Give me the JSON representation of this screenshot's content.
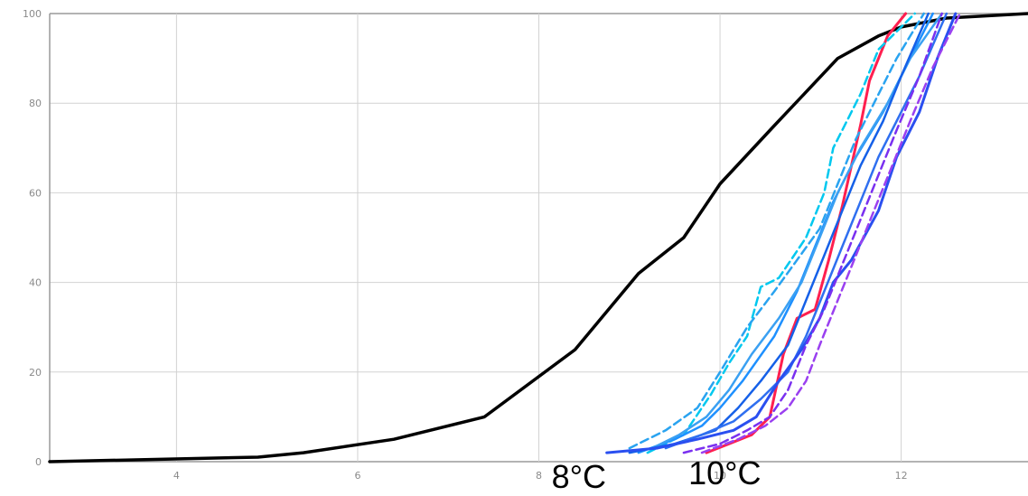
{
  "chart_data": {
    "type": "line",
    "xlim": [
      2.6,
      13.4
    ],
    "ylim": [
      0,
      100
    ],
    "x_ticks": [
      4,
      6,
      8,
      10,
      12
    ],
    "y_ticks": [
      0,
      20,
      40,
      60,
      80,
      100
    ],
    "grid": true,
    "annotations": [
      {
        "text": "8°C",
        "x": 8.5
      },
      {
        "text": "10°C",
        "x": 10.1
      }
    ],
    "series": [
      {
        "color": "#000000",
        "style": "solid",
        "width": 3.5,
        "points": [
          [
            2.6,
            0
          ],
          [
            4.9,
            1
          ],
          [
            5.4,
            2
          ],
          [
            6.4,
            5
          ],
          [
            7.4,
            10
          ],
          [
            8.4,
            25
          ],
          [
            9.1,
            42
          ],
          [
            9.6,
            50
          ],
          [
            10.0,
            62
          ],
          [
            10.6,
            75
          ],
          [
            11.3,
            90
          ],
          [
            11.75,
            95
          ],
          [
            12.0,
            97
          ],
          [
            12.5,
            99
          ],
          [
            13.4,
            100
          ]
        ]
      },
      {
        "color": "#ff1f4f",
        "style": "solid",
        "width": 3,
        "points": [
          [
            9.85,
            2
          ],
          [
            10.1,
            4
          ],
          [
            10.35,
            6
          ],
          [
            10.55,
            10
          ],
          [
            10.7,
            24
          ],
          [
            10.85,
            32
          ],
          [
            11.05,
            34
          ],
          [
            11.2,
            45
          ],
          [
            11.35,
            57
          ],
          [
            11.55,
            75
          ],
          [
            11.65,
            85
          ],
          [
            11.85,
            95
          ],
          [
            12.05,
            100
          ]
        ]
      },
      {
        "color": "#00c8ef",
        "style": "dashed",
        "width": 2.5,
        "points": [
          [
            9.2,
            2
          ],
          [
            9.6,
            6
          ],
          [
            9.9,
            15
          ],
          [
            10.1,
            22
          ],
          [
            10.3,
            28
          ],
          [
            10.45,
            39
          ],
          [
            10.65,
            41
          ],
          [
            10.95,
            50
          ],
          [
            11.15,
            60
          ],
          [
            11.25,
            70
          ],
          [
            11.55,
            82
          ],
          [
            11.75,
            92
          ],
          [
            12.15,
            100
          ]
        ]
      },
      {
        "color": "#29a3f0",
        "style": "dashed",
        "width": 2.5,
        "points": [
          [
            9.0,
            3
          ],
          [
            9.4,
            7
          ],
          [
            9.75,
            12
          ],
          [
            10.0,
            20
          ],
          [
            10.3,
            30
          ],
          [
            10.6,
            38
          ],
          [
            10.85,
            45
          ],
          [
            11.1,
            52
          ],
          [
            11.3,
            62
          ],
          [
            11.5,
            72
          ],
          [
            11.75,
            82
          ],
          [
            11.95,
            90
          ],
          [
            12.25,
            100
          ]
        ]
      },
      {
        "color": "#1e90ff",
        "style": "solid",
        "width": 2.5,
        "points": [
          [
            9.1,
            2
          ],
          [
            9.5,
            5
          ],
          [
            9.8,
            8
          ],
          [
            10.0,
            12
          ],
          [
            10.25,
            18
          ],
          [
            10.6,
            28
          ],
          [
            10.85,
            38
          ],
          [
            11.05,
            48
          ],
          [
            11.25,
            58
          ],
          [
            11.5,
            68
          ],
          [
            11.8,
            78
          ],
          [
            12.05,
            88
          ],
          [
            12.35,
            100
          ]
        ]
      },
      {
        "color": "#3aa0f2",
        "style": "solid",
        "width": 2.5,
        "points": [
          [
            9.25,
            3
          ],
          [
            9.55,
            6
          ],
          [
            9.85,
            10
          ],
          [
            10.1,
            16
          ],
          [
            10.35,
            24
          ],
          [
            10.65,
            32
          ],
          [
            10.9,
            40
          ],
          [
            11.1,
            50
          ],
          [
            11.3,
            60
          ],
          [
            11.55,
            70
          ],
          [
            11.85,
            80
          ],
          [
            12.1,
            90
          ],
          [
            12.45,
            100
          ]
        ]
      },
      {
        "color": "#1560e8",
        "style": "solid",
        "width": 2.5,
        "points": [
          [
            9.0,
            2
          ],
          [
            9.5,
            4
          ],
          [
            9.95,
            7
          ],
          [
            10.2,
            12
          ],
          [
            10.45,
            18
          ],
          [
            10.75,
            26
          ],
          [
            10.95,
            36
          ],
          [
            11.15,
            46
          ],
          [
            11.35,
            56
          ],
          [
            11.55,
            66
          ],
          [
            11.8,
            76
          ],
          [
            12.0,
            86
          ],
          [
            12.3,
            100
          ]
        ]
      },
      {
        "color": "#2f6ff0",
        "style": "solid",
        "width": 2.5,
        "points": [
          [
            9.4,
            3
          ],
          [
            9.8,
            6
          ],
          [
            10.15,
            9
          ],
          [
            10.45,
            14
          ],
          [
            10.75,
            20
          ],
          [
            10.95,
            28
          ],
          [
            11.15,
            38
          ],
          [
            11.35,
            48
          ],
          [
            11.55,
            58
          ],
          [
            11.75,
            68
          ],
          [
            11.95,
            76
          ],
          [
            12.2,
            86
          ],
          [
            12.5,
            100
          ]
        ]
      },
      {
        "color": "#2a4ff0",
        "style": "solid",
        "width": 3,
        "points": [
          [
            8.75,
            2
          ],
          [
            9.3,
            3
          ],
          [
            9.75,
            5
          ],
          [
            10.15,
            7
          ],
          [
            10.4,
            10
          ],
          [
            10.65,
            18
          ],
          [
            10.9,
            25
          ],
          [
            11.1,
            32
          ],
          [
            11.25,
            40
          ],
          [
            11.45,
            45
          ],
          [
            11.75,
            56
          ],
          [
            11.95,
            68
          ],
          [
            12.2,
            78
          ],
          [
            12.4,
            90
          ],
          [
            12.6,
            100
          ]
        ]
      },
      {
        "color": "#7a30f0",
        "style": "dashed",
        "width": 2.5,
        "points": [
          [
            9.6,
            2
          ],
          [
            10.0,
            4
          ],
          [
            10.3,
            7
          ],
          [
            10.55,
            10
          ],
          [
            10.75,
            16
          ],
          [
            10.95,
            26
          ],
          [
            11.15,
            34
          ],
          [
            11.35,
            44
          ],
          [
            11.55,
            54
          ],
          [
            11.75,
            64
          ],
          [
            11.95,
            74
          ],
          [
            12.2,
            86
          ],
          [
            12.45,
            100
          ]
        ]
      },
      {
        "color": "#9a40f0",
        "style": "dashed",
        "width": 2.5,
        "points": [
          [
            9.8,
            2
          ],
          [
            10.2,
            5
          ],
          [
            10.5,
            8
          ],
          [
            10.75,
            12
          ],
          [
            10.95,
            18
          ],
          [
            11.1,
            26
          ],
          [
            11.3,
            36
          ],
          [
            11.5,
            46
          ],
          [
            11.7,
            56
          ],
          [
            11.9,
            66
          ],
          [
            12.1,
            76
          ],
          [
            12.35,
            88
          ],
          [
            12.65,
            100
          ]
        ]
      }
    ]
  }
}
